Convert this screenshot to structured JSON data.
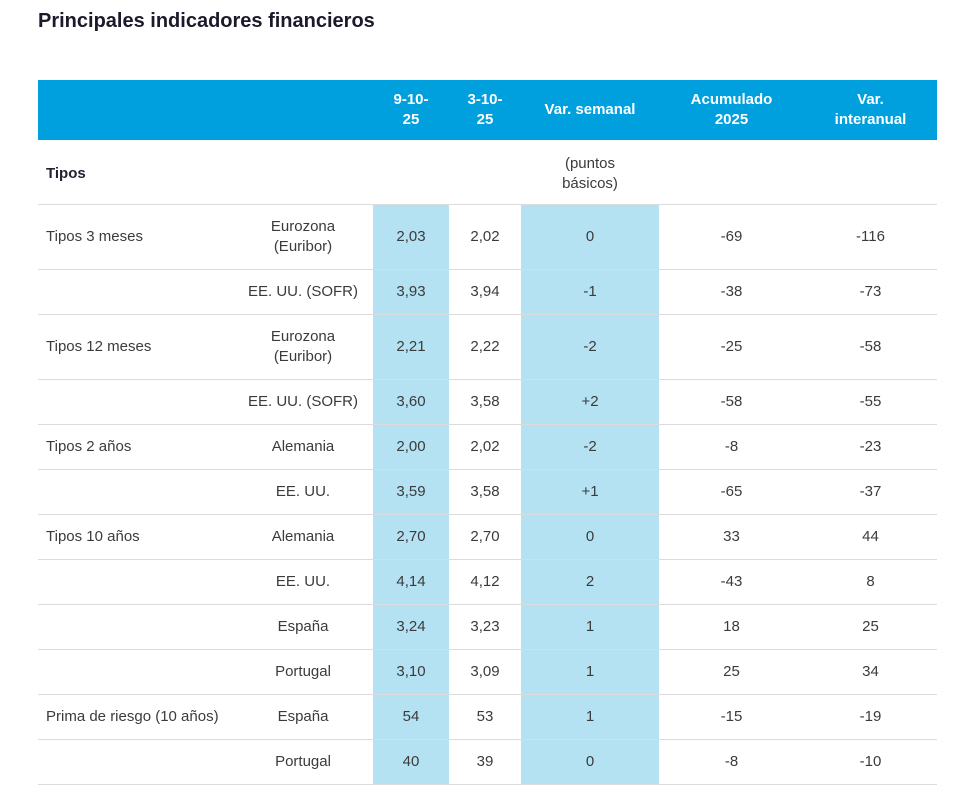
{
  "title": "Principales indicadores financieros",
  "colors": {
    "header_bg": "#00A0DF",
    "highlight_bg": "#B4E2F3",
    "border": "#dcdcdc",
    "title_text": "#1a1a2b",
    "body_text": "#3b3b3b"
  },
  "header": {
    "labels": [
      "",
      "",
      "9-10-\n25",
      "3-10-\n25",
      "Var. semanal",
      "Acumulado\n2025",
      "Var.\ninteranual"
    ]
  },
  "section": {
    "label": "Tipos",
    "units_note": "(puntos\nbásicos)"
  },
  "chart_data": {
    "type": "table",
    "title": "Principales indicadores financieros",
    "columns": [
      "9-10-25",
      "3-10-25",
      "Var. semanal (puntos básicos)",
      "Acumulado 2025",
      "Var. interanual"
    ],
    "section": "Tipos",
    "highlighted_columns": [
      "9-10-25",
      "Var. semanal"
    ],
    "rows": [
      {
        "group": "Tipos 3 meses",
        "item": "Eurozona (Euribor)",
        "v1": "2,03",
        "v2": "2,02",
        "var_sem": "0",
        "acum": "-69",
        "var_int": "-116"
      },
      {
        "group": "",
        "item": "EE. UU. (SOFR)",
        "v1": "3,93",
        "v2": "3,94",
        "var_sem": "-1",
        "acum": "-38",
        "var_int": "-73"
      },
      {
        "group": "Tipos 12 meses",
        "item": "Eurozona (Euribor)",
        "v1": "2,21",
        "v2": "2,22",
        "var_sem": "-2",
        "acum": "-25",
        "var_int": "-58"
      },
      {
        "group": "",
        "item": "EE. UU. (SOFR)",
        "v1": "3,60",
        "v2": "3,58",
        "var_sem": "+2",
        "acum": "-58",
        "var_int": "-55"
      },
      {
        "group": "Tipos 2 años",
        "item": "Alemania",
        "v1": "2,00",
        "v2": "2,02",
        "var_sem": "-2",
        "acum": "-8",
        "var_int": "-23"
      },
      {
        "group": "",
        "item": "EE. UU.",
        "v1": "3,59",
        "v2": "3,58",
        "var_sem": "+1",
        "acum": "-65",
        "var_int": "-37"
      },
      {
        "group": "Tipos 10 años",
        "item": "Alemania",
        "v1": "2,70",
        "v2": "2,70",
        "var_sem": "0",
        "acum": "33",
        "var_int": "44"
      },
      {
        "group": "",
        "item": "EE. UU.",
        "v1": "4,14",
        "v2": "4,12",
        "var_sem": "2",
        "acum": "-43",
        "var_int": "8"
      },
      {
        "group": "",
        "item": "España",
        "v1": "3,24",
        "v2": "3,23",
        "var_sem": "1",
        "acum": "18",
        "var_int": "25"
      },
      {
        "group": "",
        "item": "Portugal",
        "v1": "3,10",
        "v2": "3,09",
        "var_sem": "1",
        "acum": "25",
        "var_int": "34"
      },
      {
        "group": "Prima de riesgo (10 años)",
        "item": "España",
        "v1": "54",
        "v2": "53",
        "var_sem": "1",
        "acum": "-15",
        "var_int": "-19"
      },
      {
        "group": "",
        "item": "Portugal",
        "v1": "40",
        "v2": "39",
        "var_sem": "0",
        "acum": "-8",
        "var_int": "-10"
      }
    ]
  }
}
